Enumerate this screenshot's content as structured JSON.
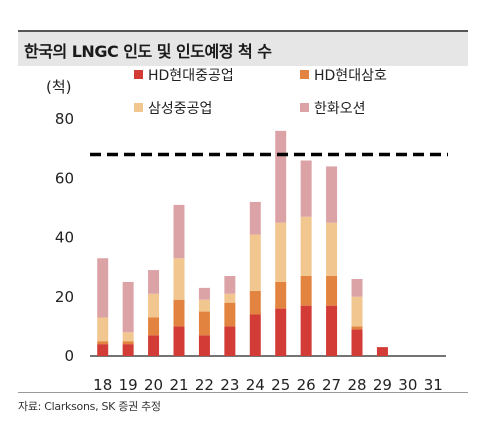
{
  "title": "한국의 LNGC 인도 및 인도예정 척 수",
  "source": "자료: Clarksons, SK 증권 추정",
  "chart_data": {
    "type": "bar",
    "stacked": true,
    "ylabel": "(척)",
    "xlabel": "",
    "ylim": [
      0,
      80
    ],
    "yticks": [
      0,
      20,
      40,
      60,
      80
    ],
    "categories": [
      "18",
      "19",
      "20",
      "21",
      "22",
      "23",
      "24",
      "25",
      "26",
      "27",
      "28",
      "29",
      "30",
      "31"
    ],
    "series": [
      {
        "name": "HD현대중공업",
        "color": "#d23b36",
        "values": [
          4,
          4,
          7,
          10,
          7,
          10,
          14,
          16,
          17,
          17,
          9,
          3,
          0,
          0
        ]
      },
      {
        "name": "HD현대삼호",
        "color": "#e2833f",
        "values": [
          1,
          1,
          6,
          9,
          8,
          8,
          8,
          9,
          10,
          10,
          1,
          0,
          0,
          0
        ]
      },
      {
        "name": "삼성중공업",
        "color": "#f2c68f",
        "values": [
          8,
          3,
          8,
          14,
          4,
          3,
          19,
          20,
          20,
          18,
          10,
          0,
          0,
          0
        ]
      },
      {
        "name": "한화오션",
        "color": "#dca3a7",
        "values": [
          20,
          17,
          8,
          18,
          4,
          6,
          11,
          31,
          19,
          19,
          6,
          0,
          0,
          0
        ]
      }
    ],
    "reference_line": {
      "value": 68,
      "style": "dashed",
      "color": "#000000"
    },
    "legend_position": "top",
    "grid": false
  }
}
